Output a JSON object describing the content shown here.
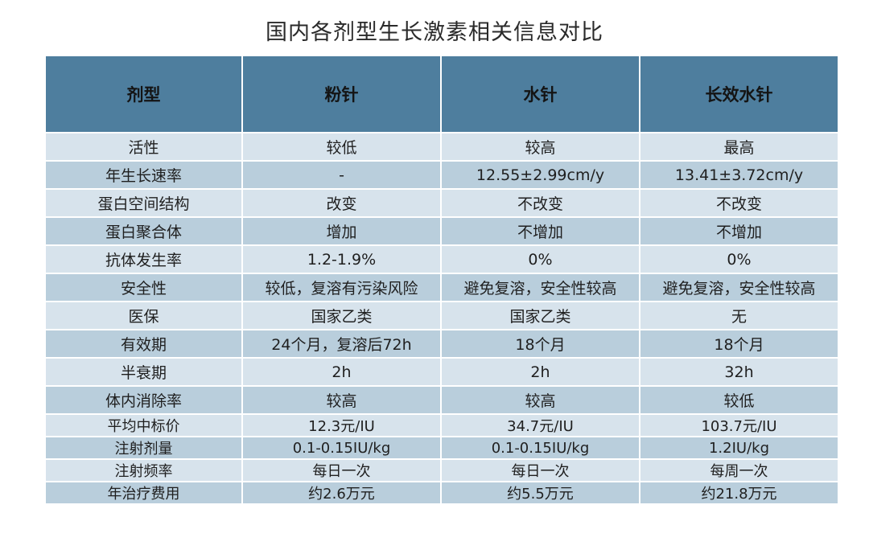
{
  "title": "国内各剂型生长激素相关信息对比",
  "table": {
    "headers": [
      "剂型",
      "粉针",
      "水针",
      "长效水针"
    ],
    "rows": [
      [
        "活性",
        "较低",
        "较高",
        "最高"
      ],
      [
        "年生长速率",
        "-",
        "12.55±2.99cm/y",
        "13.41±3.72cm/y"
      ],
      [
        "蛋白空间结构",
        "改变",
        "不改变",
        "不改变"
      ],
      [
        "蛋白聚合体",
        "增加",
        "不增加",
        "不增加"
      ],
      [
        "抗体发生率",
        "1.2-1.9%",
        "0%",
        "0%"
      ],
      [
        "安全性",
        "较低，复溶有污染风险",
        "避免复溶，安全性较高",
        "避免复溶，安全性较高"
      ],
      [
        "医保",
        "国家乙类",
        "国家乙类",
        "无"
      ],
      [
        "有效期",
        "24个月，复溶后72h",
        "18个月",
        "18个月"
      ],
      [
        "半衰期",
        "2h",
        "2h",
        "32h"
      ],
      [
        "体内消除率",
        "较高",
        "较高",
        "较低"
      ],
      [
        "平均中标价",
        "12.3元/IU",
        "34.7元/IU",
        "103.7元/IU"
      ],
      [
        "注射剂量",
        "0.1-0.15IU/kg",
        "0.1-0.15IU/kg",
        "1.2IU/kg"
      ],
      [
        "注射频率",
        "每日一次",
        "每日一次",
        "每周一次"
      ],
      [
        "年治疗费用",
        "约2.6万元",
        "约5.5万元",
        "约21.8万元"
      ]
    ]
  },
  "colors": {
    "header_bg": "#4e7e9e",
    "row_light": "#d7e3ec",
    "row_dark": "#b9cedc"
  }
}
